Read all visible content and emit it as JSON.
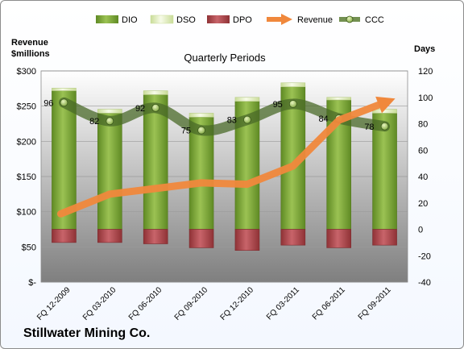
{
  "chart_data": {
    "type": "bar",
    "title": "Quarterly Periods",
    "categories": [
      "FQ 12-2009",
      "FQ 03-2010",
      "FQ 06-2010",
      "FQ 09-2010",
      "FQ 12-2010",
      "FQ 03-2011",
      "FQ 06-2011",
      "FQ 09-2011"
    ],
    "left_axis": {
      "label_line1": "Revenue",
      "label_line2": "$millions",
      "min": 0,
      "max": 300,
      "step": 50,
      "tick_labels": [
        "$-",
        "$50",
        "$100",
        "$150",
        "$200",
        "$250",
        "$300"
      ]
    },
    "right_axis": {
      "label": "Days",
      "min": -40,
      "max": 120,
      "step": 20,
      "tick_labels": [
        "-40",
        "-20",
        "0",
        "20",
        "40",
        "60",
        "80",
        "100",
        "120"
      ]
    },
    "series": [
      {
        "name": "DIO",
        "type": "bar",
        "axis": "right",
        "color": "#77a032",
        "values": [
          105,
          88,
          102,
          85,
          97,
          108,
          98,
          88
        ]
      },
      {
        "name": "DSO",
        "type": "bar",
        "axis": "right",
        "color": "#e8f2c8",
        "values": [
          2,
          3,
          3,
          3,
          3,
          3,
          2,
          3
        ]
      },
      {
        "name": "DPO",
        "type": "bar",
        "axis": "right",
        "color": "#b04a4e",
        "values": [
          -10,
          -10,
          -11,
          -14,
          -16,
          -12,
          -14,
          -12
        ]
      },
      {
        "name": "Revenue",
        "type": "line",
        "axis": "left",
        "color": "#f0883c",
        "values": [
          97,
          125,
          133,
          141,
          139,
          165,
          230,
          255
        ]
      },
      {
        "name": "CCC",
        "type": "line",
        "axis": "right",
        "color": "#5a7d32",
        "values": [
          96,
          82,
          92,
          75,
          83,
          95,
          84,
          78
        ],
        "data_labels": [
          "96",
          "82",
          "92",
          "75",
          "83",
          "95",
          "84",
          "78"
        ]
      }
    ],
    "legend": {
      "placement": "top",
      "entries": [
        "DIO",
        "DSO",
        "DPO",
        "Revenue",
        "CCC"
      ]
    },
    "grid": true
  },
  "footer": {
    "company": "Stillwater Mining Co."
  }
}
